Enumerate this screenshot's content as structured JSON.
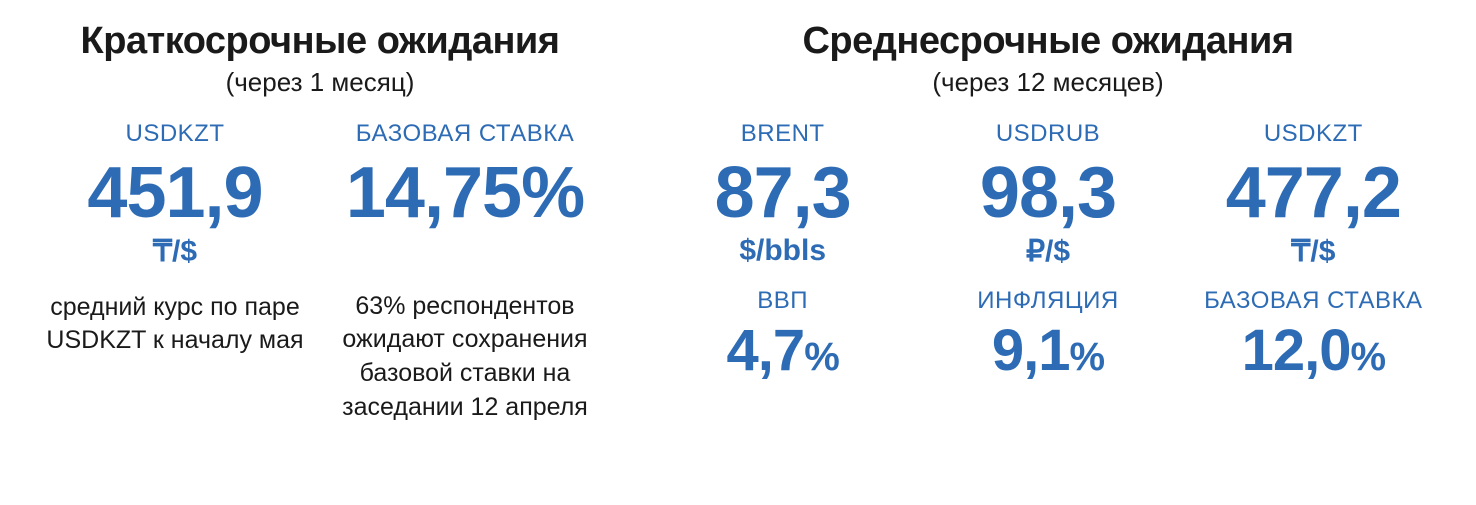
{
  "colors": {
    "accent": "#2d6cb5",
    "text": "#1a1a1a",
    "background": "#ffffff"
  },
  "typography": {
    "title_fontsize": 38,
    "subtitle_fontsize": 26,
    "label_fontsize": 24,
    "big_value_fontsize": 72,
    "small_value_fontsize": 58,
    "small_pct_fontsize": 40,
    "unit_fontsize": 30,
    "desc_fontsize": 25,
    "font_family": "Arial Narrow / condensed sans-serif"
  },
  "short": {
    "title": "Краткосрочные ожидания",
    "subtitle": "(через 1 месяц)",
    "usdkzt": {
      "label": "USDKZT",
      "value": "451,9",
      "unit": "₸/$",
      "desc": "средний курс по паре USDKZT к началу мая"
    },
    "rate": {
      "label": "БАЗОВАЯ СТАВКА",
      "value": "14,75%",
      "desc": "63% респондентов ожидают сохранения базовой ставки на заседании 12 апреля"
    }
  },
  "mid": {
    "title": "Среднесрочные ожидания",
    "subtitle": "(через 12 месяцев)",
    "brent": {
      "label": "BRENT",
      "value": "87,3",
      "unit": "$/bbls"
    },
    "usdrub": {
      "label": "USDRUB",
      "value": "98,3",
      "unit": "₽/$"
    },
    "usdkzt": {
      "label": "USDKZT",
      "value": "477,2",
      "unit": "₸/$"
    },
    "gdp": {
      "label": "ВВП",
      "value": "4,7",
      "pct": "%"
    },
    "inflation": {
      "label": "ИНФЛЯЦИЯ",
      "value": "9,1",
      "pct": "%"
    },
    "rate": {
      "label": "БАЗОВАЯ СТАВКА",
      "value": "12,0",
      "pct": "%"
    }
  }
}
